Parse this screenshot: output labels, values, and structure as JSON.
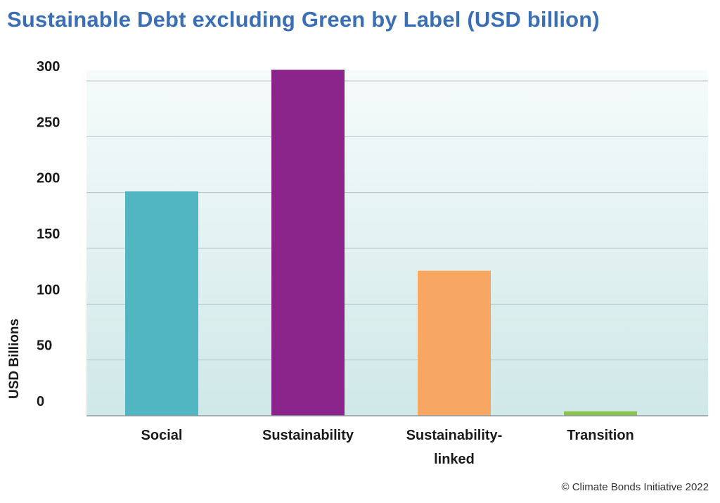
{
  "chart_data": {
    "type": "bar",
    "title": "Sustainable Debt excluding Green by Label (USD billion)",
    "xlabel": "",
    "ylabel": "USD Billions",
    "ylim": [
      0,
      300
    ],
    "yticks": [
      0,
      50,
      100,
      150,
      200,
      250,
      300
    ],
    "grid": true,
    "legend": "none",
    "categories": [
      [
        "Social"
      ],
      [
        "Sustainability"
      ],
      [
        "Sustainability-",
        "linked"
      ],
      [
        "Transition"
      ]
    ],
    "values": [
      201,
      310,
      130,
      4
    ],
    "colors": [
      "#52b5c2",
      "#8b248a",
      "#f7a762",
      "#8bc34a"
    ]
  },
  "colors": {
    "title": "#3a6fb5",
    "plot_bg_top": "#f6fbfb",
    "plot_bg_bottom": "#cfe8e8",
    "gridline": "#b9c3c7",
    "axis": "#8f9a9e"
  },
  "footer": {
    "copyright": "© Climate Bonds Initiative 2022"
  }
}
